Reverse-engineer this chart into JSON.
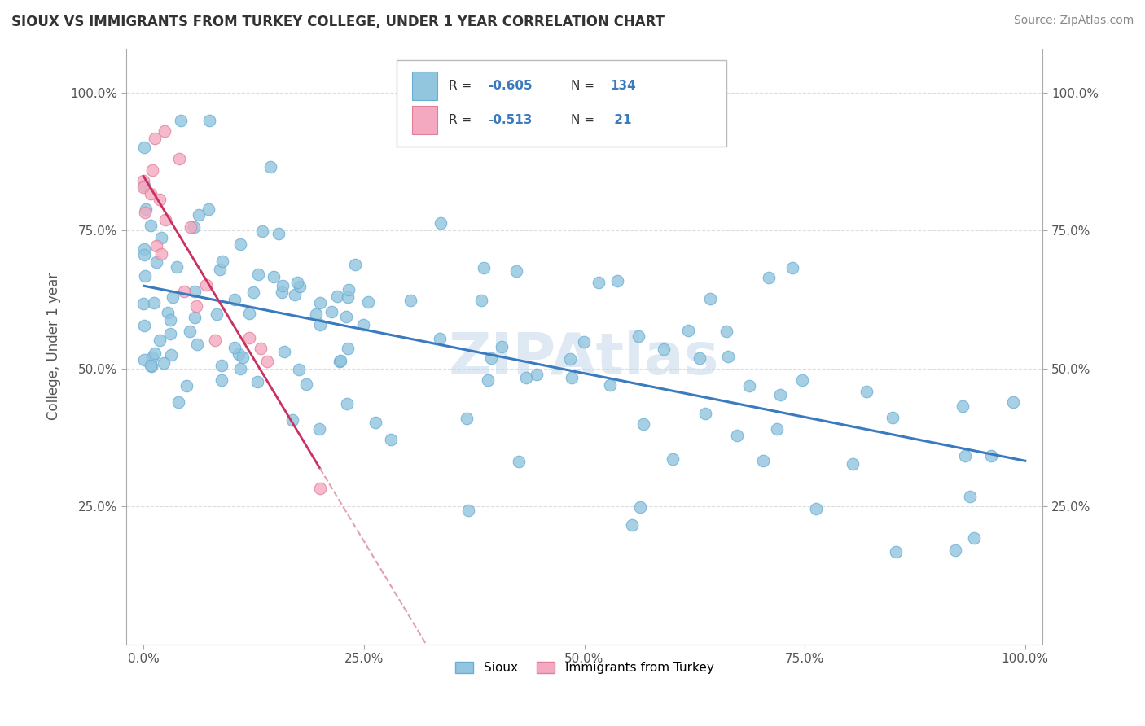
{
  "title": "SIOUX VS IMMIGRANTS FROM TURKEY COLLEGE, UNDER 1 YEAR CORRELATION CHART",
  "source": "Source: ZipAtlas.com",
  "ylabel_label": "College, Under 1 year",
  "x_tick_labels": [
    "0.0%",
    "25.0%",
    "50.0%",
    "75.0%",
    "100.0%"
  ],
  "y_tick_labels": [
    "25.0%",
    "50.0%",
    "75.0%",
    "100.0%"
  ],
  "right_y_tick_labels": [
    "25.0%",
    "50.0%",
    "75.0%",
    "100.0%"
  ],
  "x_range": [
    -0.02,
    1.02
  ],
  "y_range": [
    0.0,
    1.08
  ],
  "sioux_color": "#92c5de",
  "turkey_color": "#f4a9c0",
  "sioux_edge": "#6aaed6",
  "turkey_edge": "#e08098",
  "trend_sioux_color": "#3a7abf",
  "trend_turkey_color": "#cc3060",
  "trend_turkey_dashed_color": "#e0a0b5",
  "watermark_color": "#c5d8ea",
  "title_color": "#333333",
  "source_color": "#888888",
  "grid_color": "#dddddd",
  "legend_text_color": "#333333",
  "legend_value_color": "#3a7abf"
}
